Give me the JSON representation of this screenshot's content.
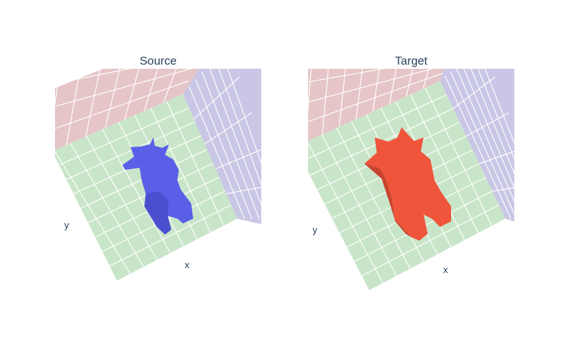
{
  "panels": [
    {
      "title": "Source",
      "x_label": "x",
      "y_label": "y"
    },
    {
      "title": "Target",
      "x_label": "x",
      "y_label": "y"
    }
  ]
}
